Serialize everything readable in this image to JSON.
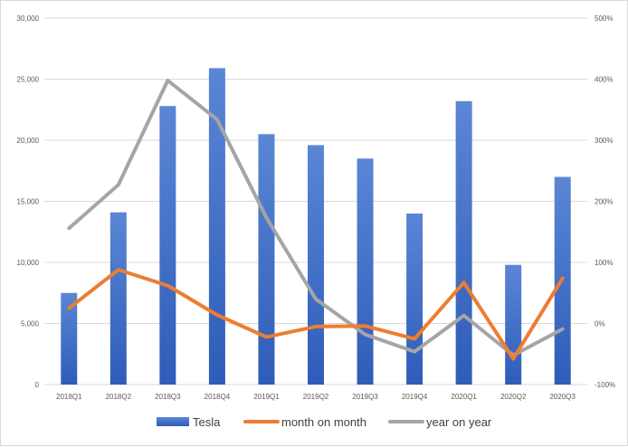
{
  "chart_data": {
    "type": "bar",
    "categories": [
      "2018Q1",
      "2018Q2",
      "2018Q3",
      "2018Q4",
      "2019Q1",
      "2019Q2",
      "2019Q3",
      "2019Q4",
      "2020Q1",
      "2020Q2",
      "2020Q3"
    ],
    "series": [
      {
        "name": "Tesla",
        "type": "bar",
        "axis": "left",
        "values": [
          7500,
          14100,
          22800,
          25900,
          20500,
          19600,
          18500,
          14000,
          23200,
          9800,
          17000
        ]
      },
      {
        "name": "month on month",
        "type": "line",
        "axis": "right",
        "unit": "%",
        "values": [
          25,
          88,
          62,
          14,
          -22,
          -5,
          -4,
          -25,
          67,
          -58,
          74
        ]
      },
      {
        "name": "year on year",
        "type": "line",
        "axis": "right",
        "unit": "%",
        "values": [
          156,
          227,
          398,
          334,
          173,
          40,
          -18,
          -46,
          13,
          -52,
          -9
        ]
      }
    ],
    "y_left": {
      "ylim": [
        0,
        30000
      ],
      "ticks": [
        0,
        5000,
        10000,
        15000,
        20000,
        25000,
        30000
      ],
      "tick_labels": [
        "0",
        "5,000",
        "10,000",
        "15,000",
        "20,000",
        "25,000",
        "30,000"
      ]
    },
    "y_right": {
      "ylim": [
        -100,
        500
      ],
      "ticks": [
        -100,
        0,
        100,
        200,
        300,
        400,
        500
      ],
      "tick_labels": [
        "-100%",
        "0%",
        "100%",
        "200%",
        "300%",
        "400%",
        "500%"
      ]
    },
    "grid": true,
    "legend_position": "bottom",
    "colors": {
      "bar_top": "#5b86d6",
      "bar_bottom": "#2e5cb8",
      "month_on_month": "#ed7d31",
      "year_on_year": "#a5a5a5",
      "gridline": "#d9d9d9",
      "tick_text": "#595959"
    }
  }
}
